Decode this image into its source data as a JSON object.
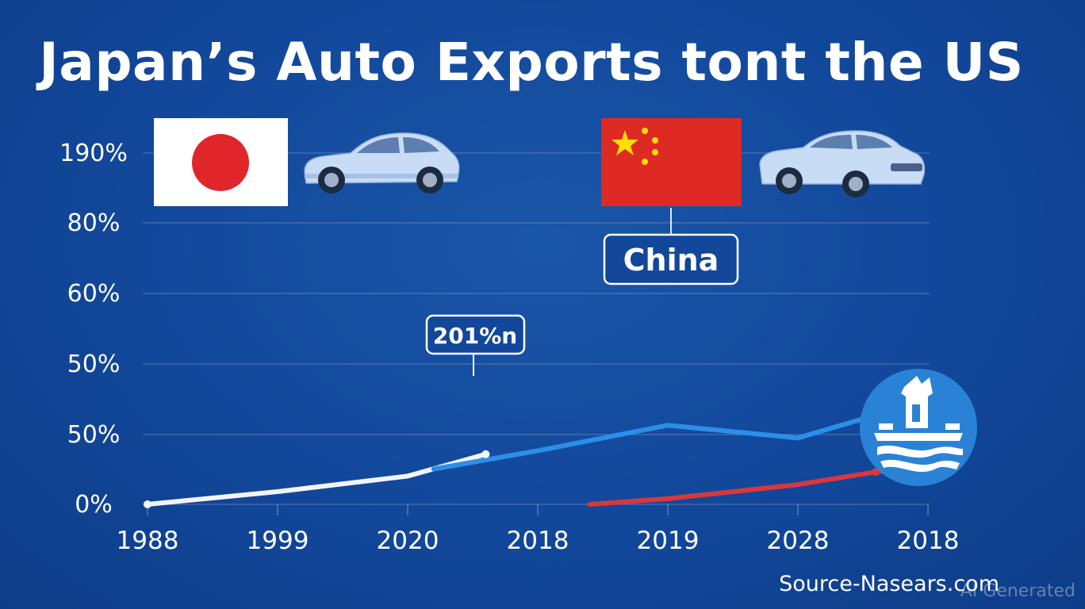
{
  "chart_data": {
    "type": "line",
    "title": "Japan’s Auto Exports tont the US",
    "x_tick_labels": [
      "1988",
      "1999",
      "2020",
      "2018",
      "2019",
      "2028",
      "2018"
    ],
    "y_tick_labels": [
      "0%",
      "50%",
      "50%",
      "60%",
      "80%",
      "190%"
    ],
    "series": [
      {
        "color": "#f2f4f8",
        "points": [
          {
            "x_index": 0,
            "y": 0
          },
          {
            "x_index": 1,
            "y": 9
          },
          {
            "x_index": 2,
            "y": 20
          },
          {
            "x_index": 2.6,
            "y": 35.5
          }
        ]
      },
      {
        "color": "#2b8fe8",
        "points": [
          {
            "x_index": 2.2,
            "y": 25
          },
          {
            "x_index": 3,
            "y": 38
          },
          {
            "x_index": 4,
            "y": 56
          },
          {
            "x_index": 5,
            "y": 47
          },
          {
            "x_index": 6,
            "y": 74
          }
        ]
      },
      {
        "color": "#d8383c",
        "points": [
          {
            "x_index": 3.4,
            "y": 0
          },
          {
            "x_index": 4,
            "y": 4
          },
          {
            "x_index": 5,
            "y": 14
          },
          {
            "x_index": 5.6,
            "y": 23
          }
        ]
      }
    ],
    "annotations": [
      {
        "text": "201%n"
      },
      {
        "text": "China"
      }
    ],
    "grid": true
  },
  "source_text": "Source-Nasears.com",
  "watermark_text": "AI Generated",
  "icons": {
    "japan_flag": "japan-flag-icon",
    "china_flag": "china-flag-icon",
    "car_left": "car-icon",
    "car_right": "sedan-icon",
    "badge": "temple-badge-icon"
  },
  "colors": {
    "background": "#12479a",
    "japan_red": "#e0262b",
    "china_red": "#de2a22",
    "china_star": "#ffde00",
    "car_body": "#c9dcf5",
    "badge_bg": "#2a82d6"
  }
}
